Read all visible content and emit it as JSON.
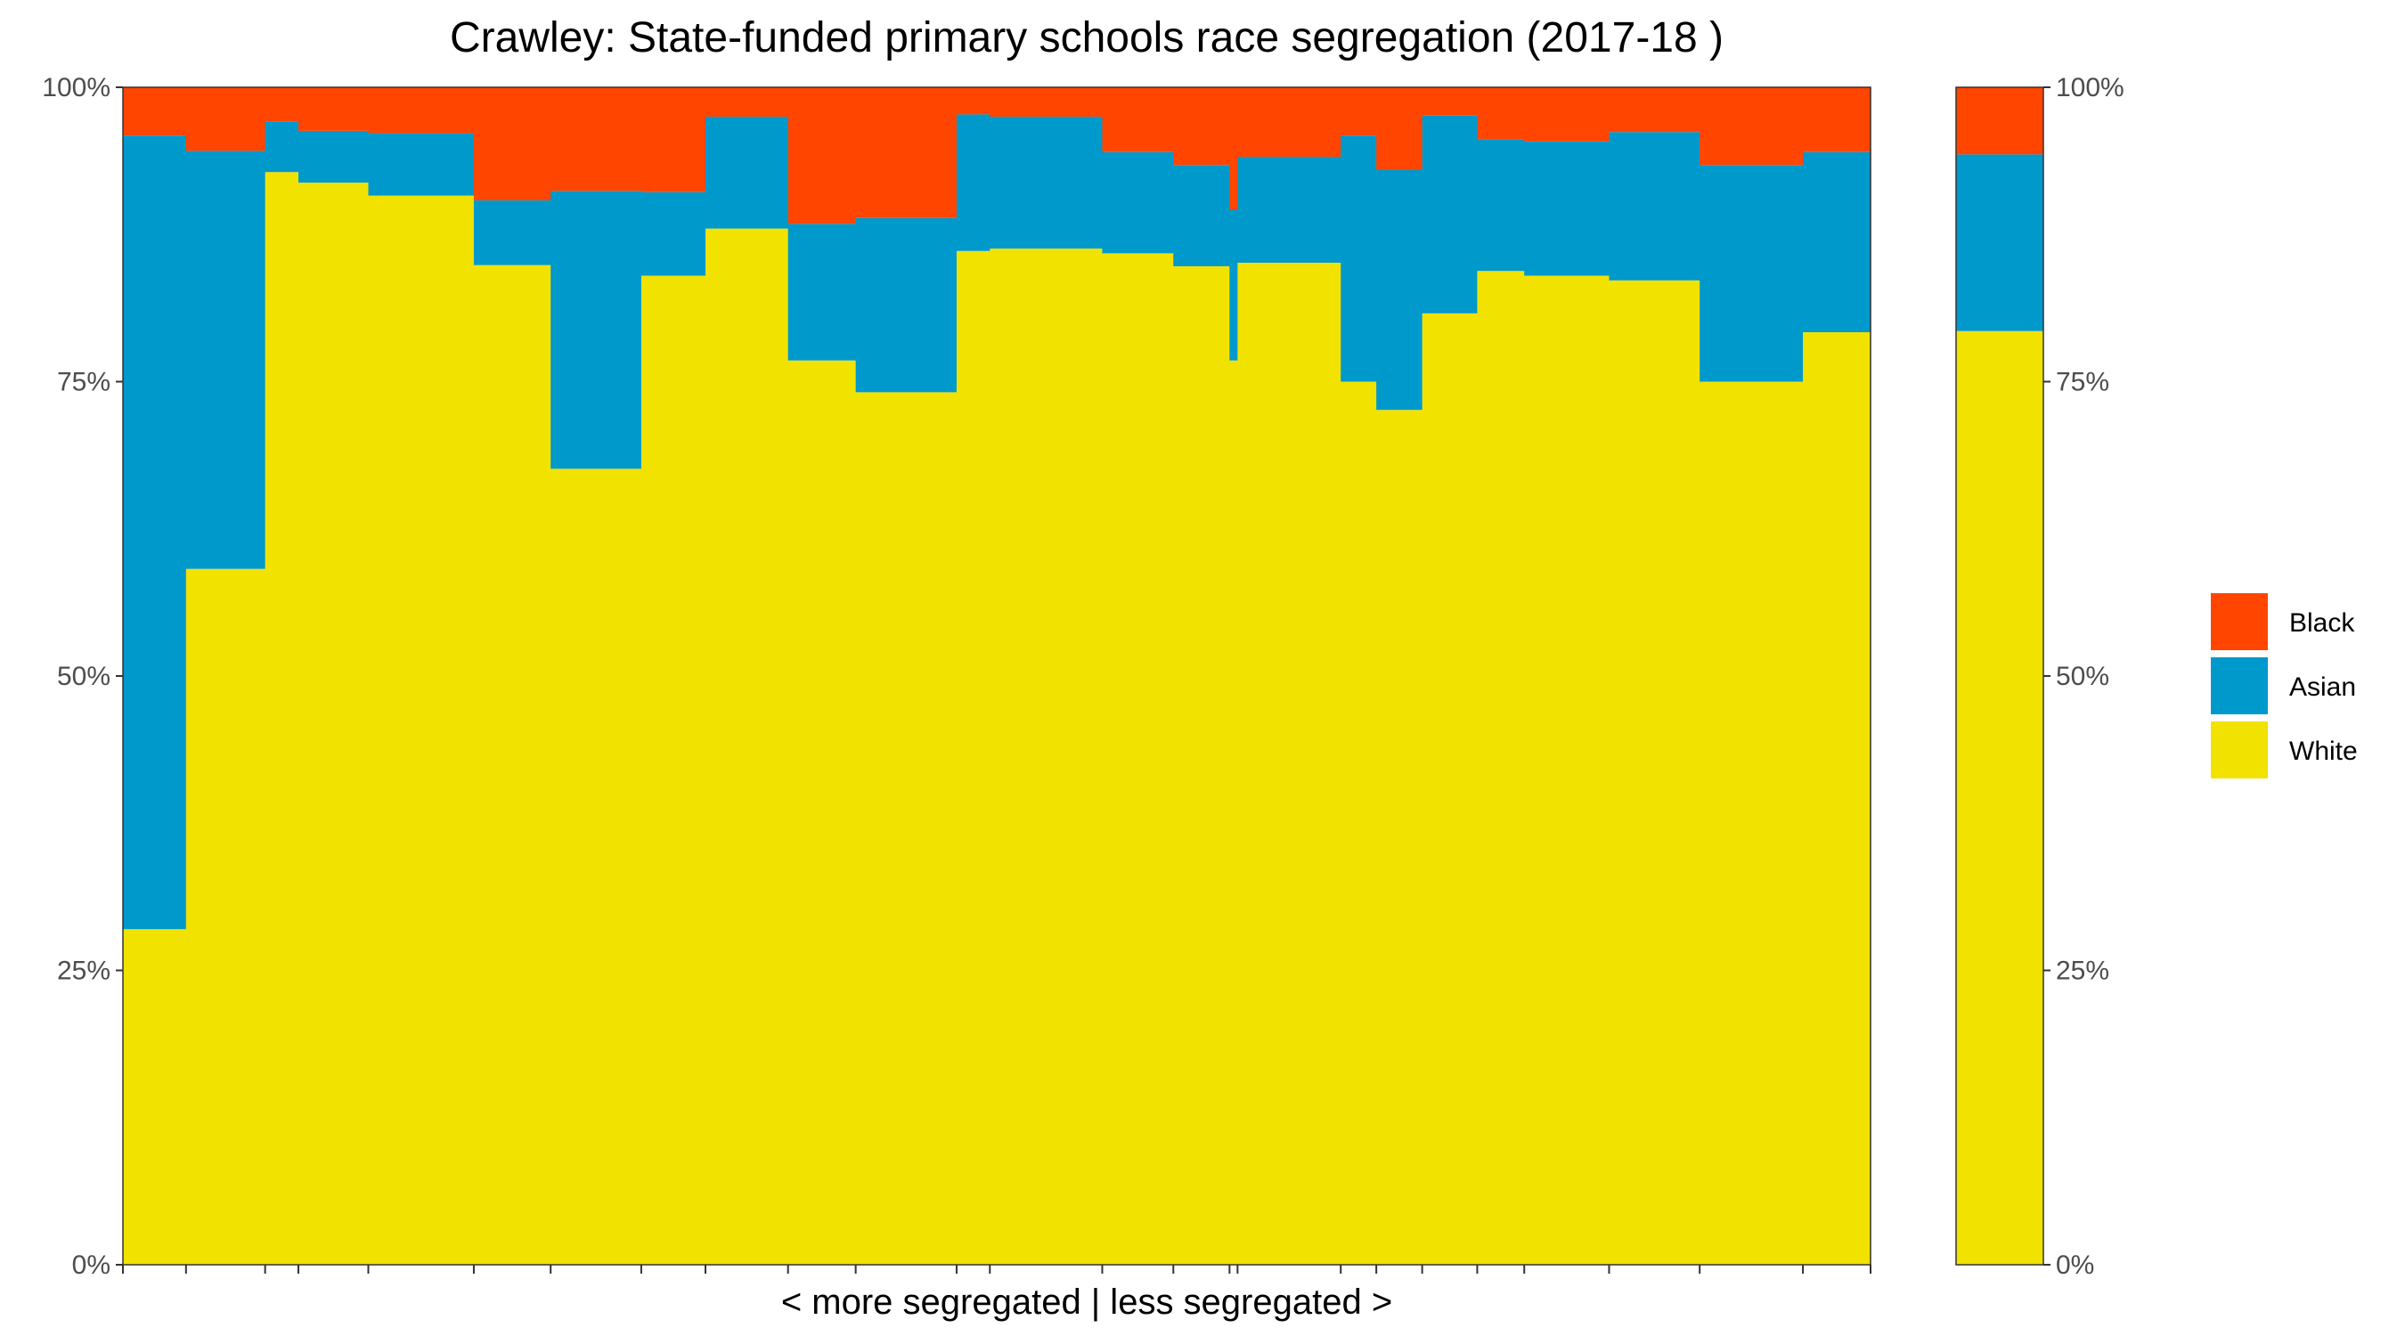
{
  "chart_data": {
    "type": "bar",
    "title": "Crawley: State-funded primary schools race segregation (2017-18 )",
    "xlabel": "< more segregated | less segregated >",
    "ylabel": "",
    "ylim": [
      0,
      100
    ],
    "y_ticks": [
      "0%",
      "25%",
      "50%",
      "75%",
      "100%"
    ],
    "grid": false,
    "stacked": true,
    "variable_width": true,
    "legend_position": "right",
    "colors": {
      "Black": "#ff4500",
      "Asian": "#0099cc",
      "White": "#f2e200"
    },
    "legend": [
      "Black",
      "Asian",
      "White"
    ],
    "schools": [
      {
        "weight": 2.2,
        "white": 28.5,
        "asian": 67.4,
        "black": 4.1
      },
      {
        "weight": 2.76,
        "white": 59.1,
        "asian": 35.5,
        "black": 5.4
      },
      {
        "weight": 1.16,
        "white": 92.8,
        "asian": 4.3,
        "black": 2.9
      },
      {
        "weight": 2.44,
        "white": 91.9,
        "asian": 4.4,
        "black": 3.7
      },
      {
        "weight": 3.68,
        "white": 90.8,
        "asian": 5.3,
        "black": 3.9
      },
      {
        "weight": 2.68,
        "white": 84.9,
        "asian": 5.5,
        "black": 9.6
      },
      {
        "weight": 3.16,
        "white": 67.6,
        "asian": 23.6,
        "black": 8.8
      },
      {
        "weight": 2.24,
        "white": 84.0,
        "asian": 7.1,
        "black": 8.9
      },
      {
        "weight": 2.88,
        "white": 88.0,
        "asian": 9.5,
        "black": 2.5
      },
      {
        "weight": 2.36,
        "white": 76.8,
        "asian": 11.6,
        "black": 11.6
      },
      {
        "weight": 3.52,
        "white": 74.1,
        "asian": 14.8,
        "black": 11.1
      },
      {
        "weight": 1.16,
        "white": 86.1,
        "asian": 11.6,
        "black": 2.3
      },
      {
        "weight": 3.92,
        "white": 86.3,
        "asian": 11.2,
        "black": 2.5
      },
      {
        "weight": 2.48,
        "white": 85.9,
        "asian": 8.6,
        "black": 5.5
      },
      {
        "weight": 1.96,
        "white": 84.8,
        "asian": 8.6,
        "black": 6.6
      },
      {
        "weight": 0.28,
        "white": 76.8,
        "asian": 12.8,
        "black": 10.4
      },
      {
        "weight": 3.6,
        "white": 85.1,
        "asian": 9.0,
        "black": 5.9
      },
      {
        "weight": 1.24,
        "white": 75.0,
        "asian": 20.9,
        "black": 4.1
      },
      {
        "weight": 1.6,
        "white": 72.6,
        "asian": 20.4,
        "black": 7.0
      },
      {
        "weight": 1.92,
        "white": 80.8,
        "asian": 16.8,
        "black": 2.4
      },
      {
        "weight": 1.64,
        "white": 84.4,
        "asian": 11.2,
        "black": 4.4
      },
      {
        "weight": 2.96,
        "white": 84.0,
        "asian": 11.4,
        "black": 4.6
      },
      {
        "weight": 3.16,
        "white": 83.6,
        "asian": 12.6,
        "black": 3.8
      },
      {
        "weight": 3.6,
        "white": 75.0,
        "asian": 18.4,
        "black": 6.6
      },
      {
        "weight": 2.36,
        "white": 79.2,
        "asian": 15.3,
        "black": 5.5
      }
    ],
    "overall": {
      "white": 79.3,
      "asian": 15.0,
      "black": 5.7
    }
  }
}
